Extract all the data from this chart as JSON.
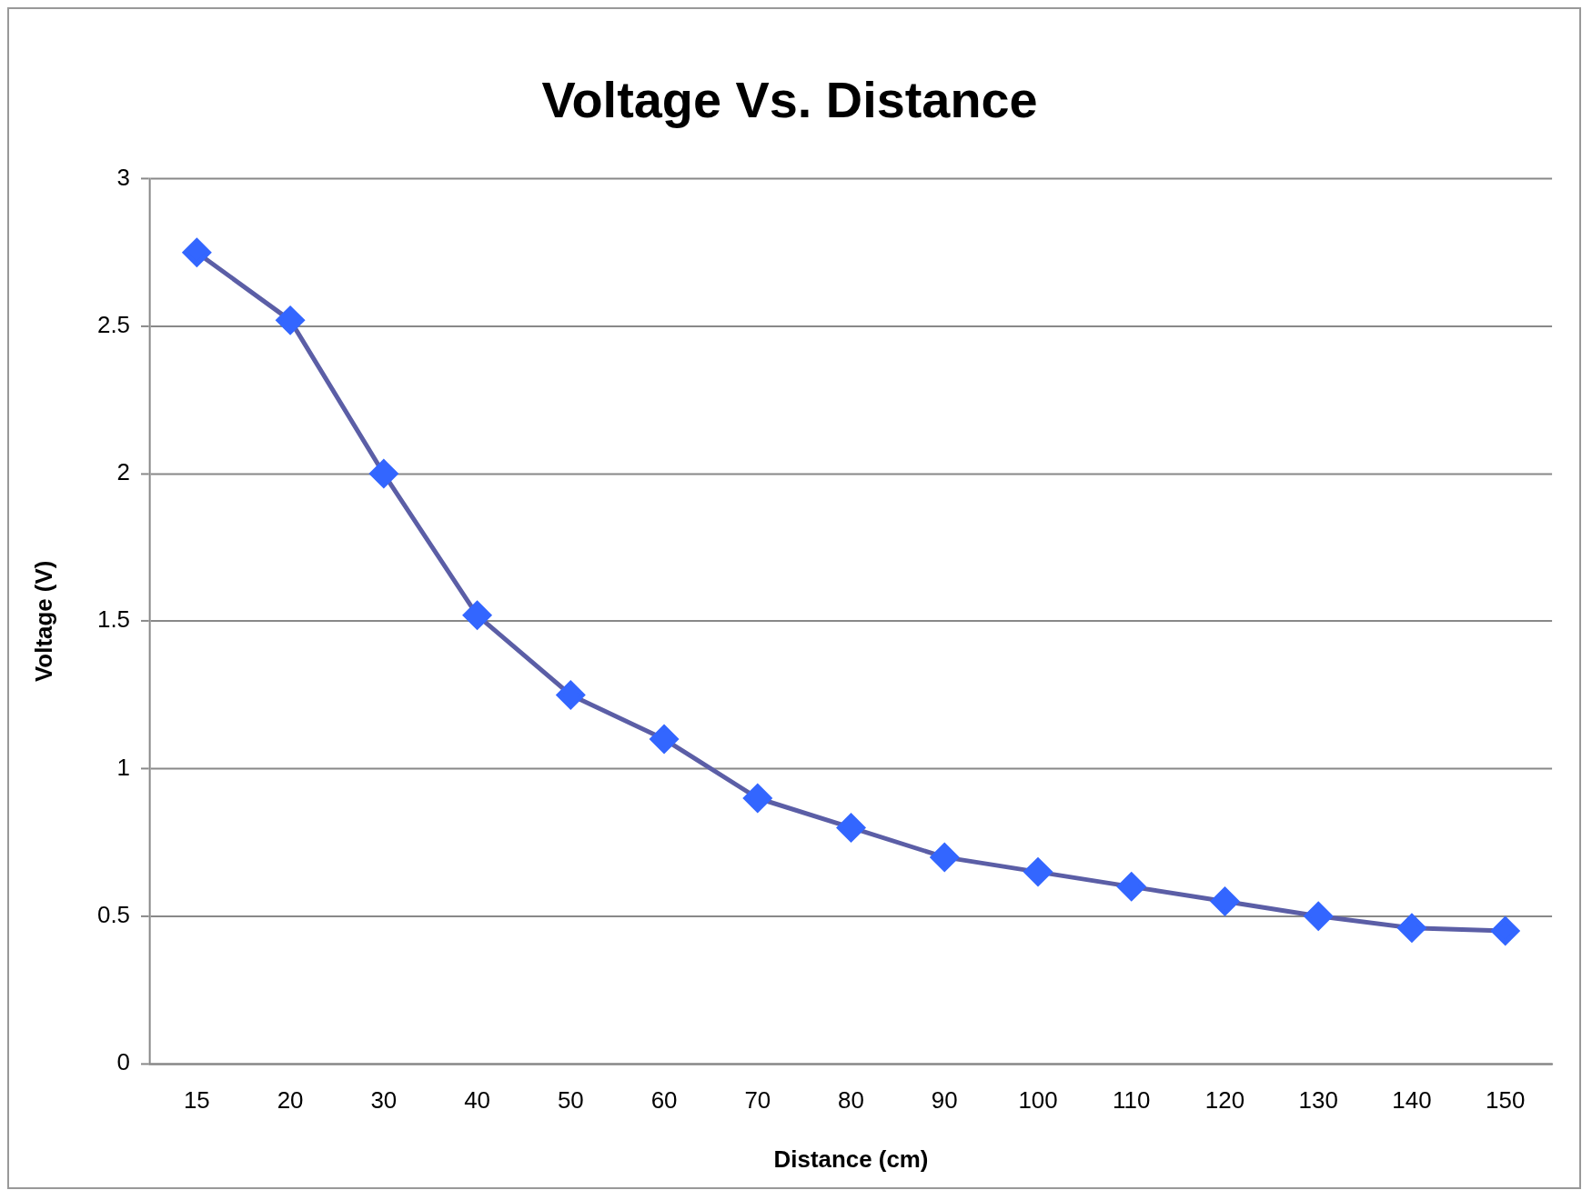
{
  "chart_data": {
    "type": "line",
    "title": "Voltage Vs. Distance",
    "xlabel": "Distance (cm)",
    "ylabel": "Voltage (V)",
    "categories": [
      "15",
      "20",
      "30",
      "40",
      "50",
      "60",
      "70",
      "80",
      "90",
      "100",
      "110",
      "120",
      "130",
      "140",
      "150"
    ],
    "series": [
      {
        "color": "#5b5ea6",
        "colors": [
          "#3366ff",
          "#3366ff",
          "#3366ff",
          "#3366ff",
          "#3366ff",
          "#3366ff",
          "#3366ff",
          "#3366ff",
          "#3366ff",
          "#3366ff",
          "#3366ff",
          "#3366ff",
          "#3366ff",
          "#3366ff",
          "#3366ff"
        ],
        "values": [
          2.75,
          2.52,
          2.0,
          1.52,
          1.25,
          1.1,
          0.9,
          0.8,
          0.7,
          0.65,
          0.6,
          0.55,
          0.5,
          0.46,
          0.45
        ]
      }
    ],
    "ylim": [
      0,
      3
    ],
    "yticks": [
      0,
      0.5,
      1,
      1.5,
      2,
      2.5,
      3
    ],
    "grid": "y",
    "legend": false,
    "marker": "diamond",
    "line_style": "solid"
  }
}
